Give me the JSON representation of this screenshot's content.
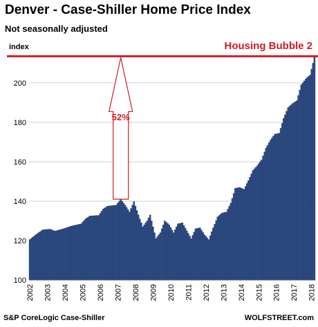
{
  "header": {
    "title": "Denver  - Case-Shiller Home Price Index",
    "subtitle": "Not seasonally adjusted"
  },
  "footer": {
    "source": "S&P CoreLogic Case-Shiller",
    "brand": "WOLFSTREET.com"
  },
  "colors": {
    "bar": "#2e4d86",
    "bar_edge": "#1a2f57",
    "accent": "#d01c24"
  },
  "chart_data": {
    "type": "bar",
    "title": "Denver  - Case-Shiller Home Price Index",
    "subtitle": "Not seasonally adjusted",
    "ylabel": "index",
    "ylim": [
      100,
      214
    ],
    "yticks": [
      100,
      120,
      140,
      160,
      180,
      200
    ],
    "grid": true,
    "x_tick_labels": [
      "2002",
      "2003",
      "2004",
      "2005",
      "2006",
      "2007",
      "2008",
      "2009",
      "2010",
      "2011",
      "2012",
      "2013",
      "2014",
      "2015",
      "2016",
      "2017",
      "2018"
    ],
    "anchors": [
      [
        "2002-01",
        120.5
      ],
      [
        "2002-06",
        123.5
      ],
      [
        "2002-10",
        125.5
      ],
      [
        "2003-03",
        125.8
      ],
      [
        "2003-06",
        124.8
      ],
      [
        "2003-12",
        126.0
      ],
      [
        "2004-06",
        127.5
      ],
      [
        "2004-12",
        128.5
      ],
      [
        "2005-03",
        131.0
      ],
      [
        "2005-06",
        132.5
      ],
      [
        "2005-12",
        132.8
      ],
      [
        "2006-03",
        136.0
      ],
      [
        "2006-06",
        137.5
      ],
      [
        "2006-12",
        138.0
      ],
      [
        "2007-03",
        141.0
      ],
      [
        "2007-06",
        138.0
      ],
      [
        "2007-09",
        134.5
      ],
      [
        "2007-12",
        139.8
      ],
      [
        "2008-03",
        133.0
      ],
      [
        "2008-06",
        127.0
      ],
      [
        "2008-09",
        130.0
      ],
      [
        "2008-11",
        133.0
      ],
      [
        "2009-01",
        127.0
      ],
      [
        "2009-03",
        121.0
      ],
      [
        "2009-06",
        124.0
      ],
      [
        "2009-09",
        130.0
      ],
      [
        "2009-12",
        128.0
      ],
      [
        "2010-03",
        124.0
      ],
      [
        "2010-06",
        128.5
      ],
      [
        "2010-09",
        129.0
      ],
      [
        "2010-12",
        125.0
      ],
      [
        "2011-03",
        121.0
      ],
      [
        "2011-06",
        126.0
      ],
      [
        "2011-09",
        126.5
      ],
      [
        "2011-12",
        123.0
      ],
      [
        "2012-03",
        120.5
      ],
      [
        "2012-06",
        126.5
      ],
      [
        "2012-09",
        132.0
      ],
      [
        "2012-12",
        134.0
      ],
      [
        "2013-03",
        134.5
      ],
      [
        "2013-06",
        139.0
      ],
      [
        "2013-09",
        146.5
      ],
      [
        "2013-12",
        147.0
      ],
      [
        "2014-03",
        146.0
      ],
      [
        "2014-06",
        150.5
      ],
      [
        "2014-09",
        155.5
      ],
      [
        "2014-12",
        158.0
      ],
      [
        "2015-03",
        161.0
      ],
      [
        "2015-06",
        167.0
      ],
      [
        "2015-09",
        171.0
      ],
      [
        "2015-12",
        174.0
      ],
      [
        "2016-03",
        174.5
      ],
      [
        "2016-06",
        182.0
      ],
      [
        "2016-09",
        187.5
      ],
      [
        "2016-12",
        189.5
      ],
      [
        "2017-03",
        191.0
      ],
      [
        "2017-06",
        199.0
      ],
      [
        "2017-09",
        202.0
      ],
      [
        "2017-12",
        204.0
      ],
      [
        "2018-02",
        210.0
      ],
      [
        "2018-03",
        213.5
      ]
    ],
    "reference_line": {
      "value": 213.5,
      "label": "Housing Bubble 2"
    },
    "annotations": [
      {
        "type": "arrow",
        "from_value": 141.0,
        "to_value": 213.5,
        "at": "2007-03",
        "label": "52%"
      }
    ]
  }
}
